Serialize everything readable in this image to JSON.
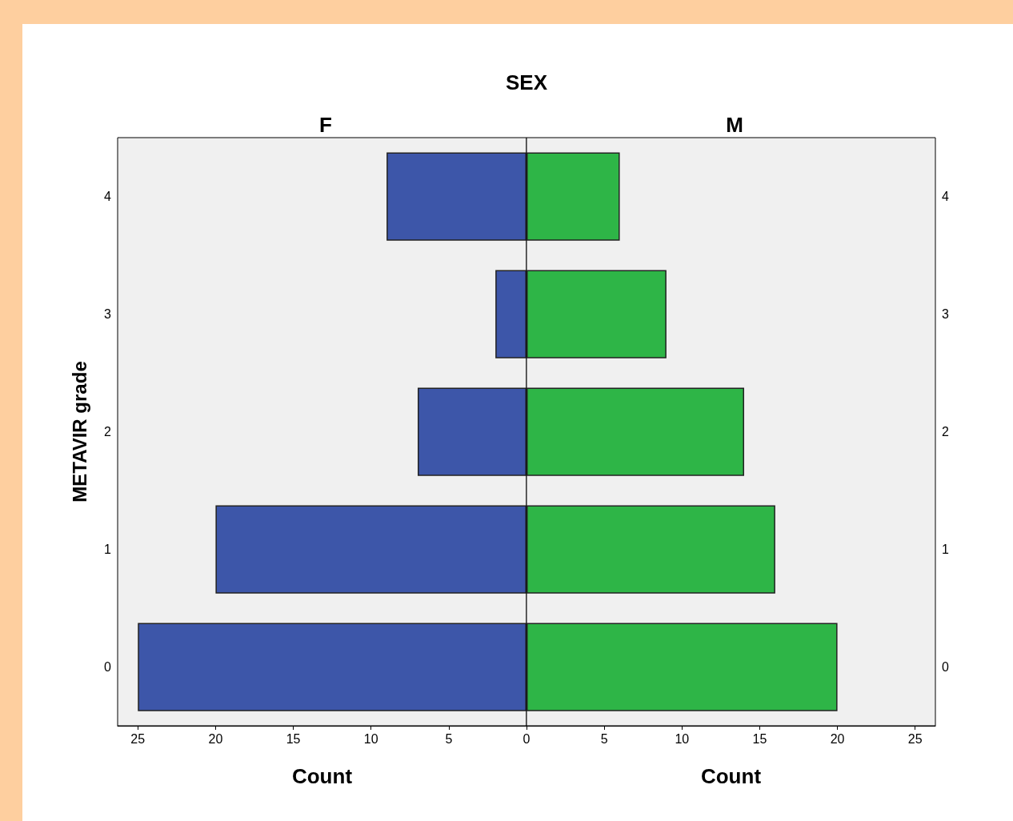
{
  "chart_data": [
    {
      "type": "bar",
      "orientation": "horizontal",
      "title": "SEX",
      "subtitle": "F",
      "xlabel": "Count",
      "ylabel": "METAVIR grade",
      "categories": [
        "4",
        "3",
        "2",
        "1",
        "0"
      ],
      "series": [
        {
          "color": "#3d56a9",
          "values": [
            9,
            2,
            7,
            20,
            25
          ]
        }
      ],
      "xlim": [
        26.3,
        0
      ],
      "xticks": [
        25,
        20,
        15,
        10,
        5,
        {
          "value": 0,
          "label": null
        }
      ],
      "grid": false
    },
    {
      "type": "bar",
      "orientation": "horizontal",
      "subtitle": "M",
      "xlabel": "Count",
      "categories": [
        "4",
        "3",
        "2",
        "1",
        "0"
      ],
      "series": [
        {
          "color": "#2eb547",
          "values": [
            6,
            9,
            14,
            16,
            20
          ]
        }
      ],
      "xlim": [
        0,
        26.3
      ],
      "xticks": [
        0,
        5,
        10,
        15,
        20,
        25
      ],
      "grid": false
    }
  ]
}
